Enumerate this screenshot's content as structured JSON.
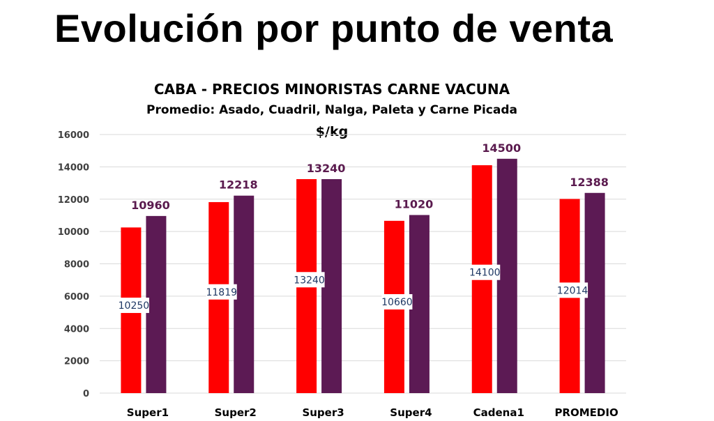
{
  "slide_title": "Evolución por punto de venta",
  "chart_data": {
    "type": "bar",
    "title": "CABA -  PRECIOS MINORISTAS CARNE VACUNA",
    "subtitle": "Promedio: Asado, Cuadril, Nalga, Paleta y Carne Picada",
    "unit": "$/kg",
    "categories": [
      "Super1",
      "Super2",
      "Super3",
      "Super4",
      "Cadena1",
      "PROMEDIO"
    ],
    "series": [
      {
        "color": "#ff0000",
        "values": [
          10250,
          11819,
          13240,
          10660,
          14100,
          12014
        ]
      },
      {
        "color": "#5c1a54",
        "values": [
          10960,
          12218,
          13240,
          11020,
          14500,
          12388
        ]
      }
    ],
    "ylim": [
      0,
      16000
    ],
    "yticks": [
      "0",
      "2000",
      "4000",
      "6000",
      "8000",
      "10000",
      "12000",
      "14000",
      "16000"
    ],
    "grid": true,
    "legend": "none"
  }
}
